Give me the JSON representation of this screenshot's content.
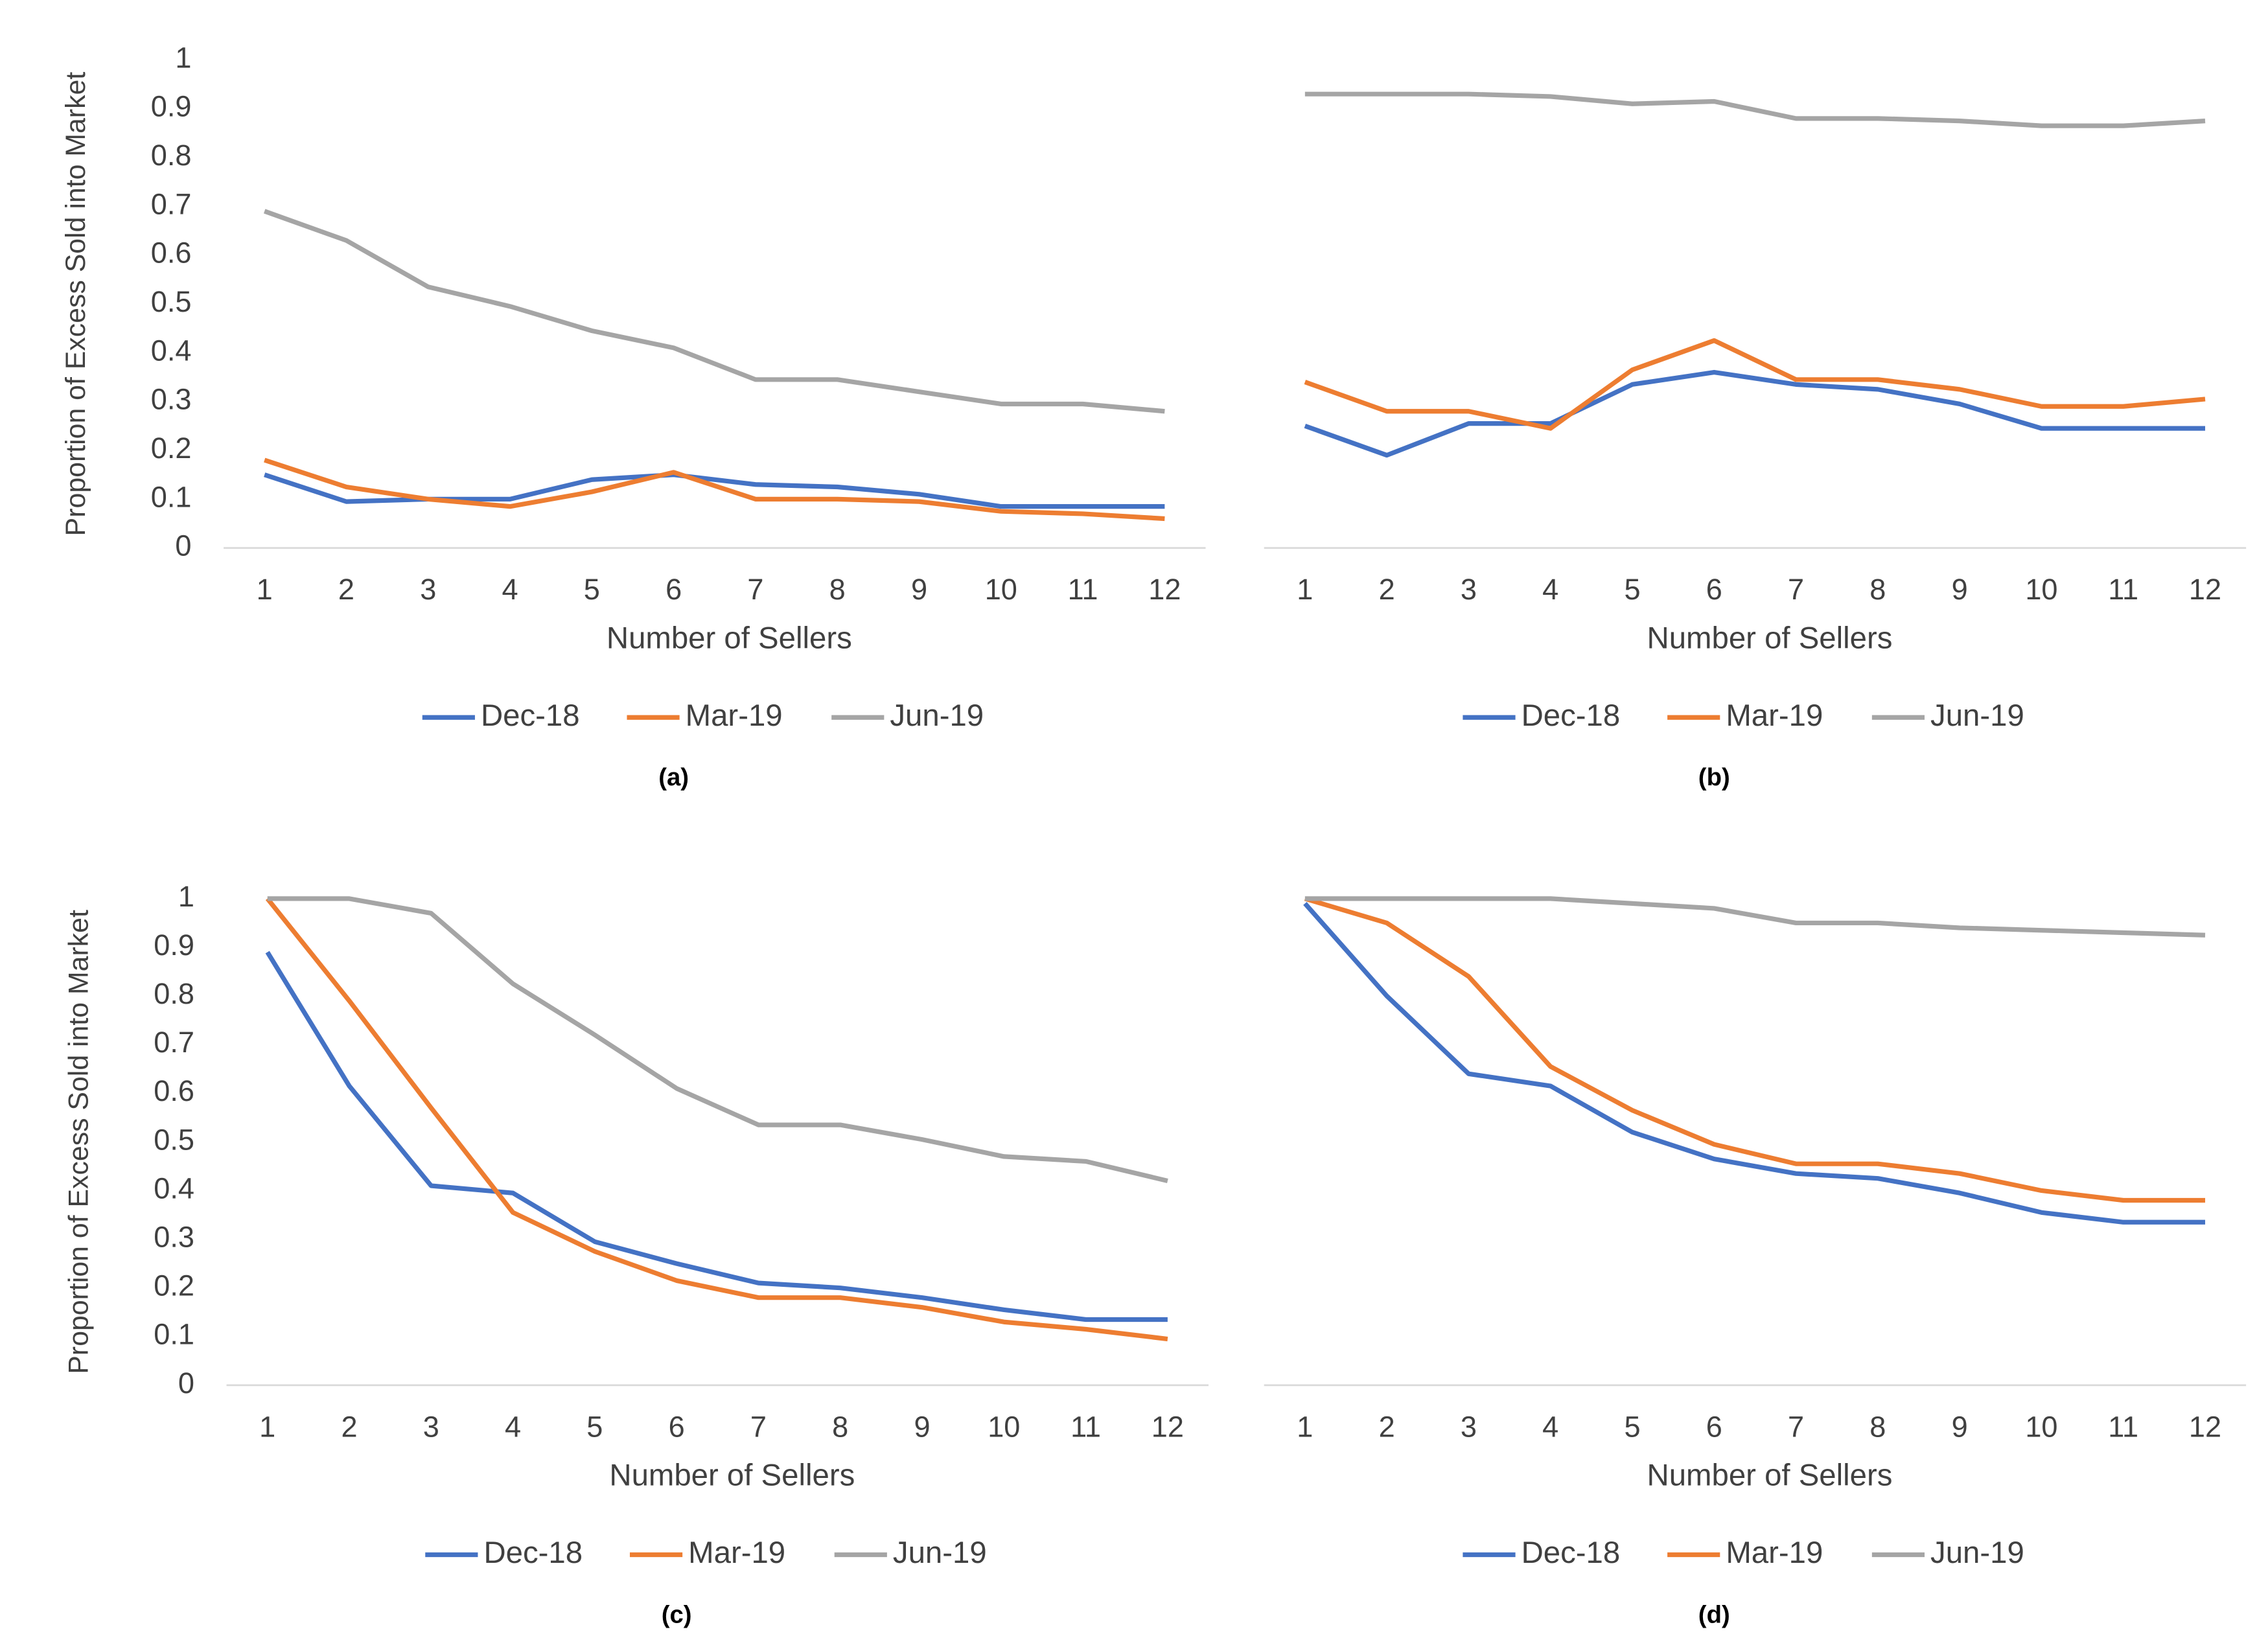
{
  "chart_data": [
    {
      "type": "line",
      "caption": "(a)",
      "x_label": "Number of Sellers",
      "y_label": "Proportion of Excess Sold into Market",
      "categories": [
        "1",
        "2",
        "3",
        "4",
        "5",
        "6",
        "7",
        "8",
        "9",
        "10",
        "11",
        "12"
      ],
      "ylim": [
        0,
        1
      ],
      "yticks": [
        0,
        0.1,
        0.2,
        0.3,
        0.4,
        0.5,
        0.6,
        0.7,
        0.8,
        0.9,
        1
      ],
      "grid": false,
      "legend": "bottom",
      "series": [
        {
          "name": "Dec-18",
          "color": "#4472c4",
          "values": [
            0.15,
            0.095,
            0.1,
            0.1,
            0.14,
            0.15,
            0.13,
            0.125,
            0.11,
            0.085,
            0.085,
            0.085
          ]
        },
        {
          "name": "Mar-19",
          "color": "#ed7d31",
          "values": [
            0.18,
            0.125,
            0.1,
            0.085,
            0.115,
            0.155,
            0.1,
            0.1,
            0.095,
            0.075,
            0.07,
            0.06
          ]
        },
        {
          "name": "Jun-19",
          "color": "#a5a5a5",
          "values": [
            0.69,
            0.63,
            0.535,
            0.495,
            0.445,
            0.41,
            0.345,
            0.345,
            0.32,
            0.295,
            0.295,
            0.28
          ]
        }
      ]
    },
    {
      "type": "line",
      "caption": "(b)",
      "x_label": "Number of Sellers",
      "categories": [
        "1",
        "2",
        "3",
        "4",
        "5",
        "6",
        "7",
        "8",
        "9",
        "10",
        "11",
        "12"
      ],
      "ylim": [
        0,
        1
      ],
      "grid": false,
      "legend": "bottom",
      "series": [
        {
          "name": "Dec-18",
          "color": "#4472c4",
          "values": [
            0.25,
            0.19,
            0.255,
            0.255,
            0.335,
            0.36,
            0.335,
            0.325,
            0.295,
            0.245,
            0.245,
            0.245
          ]
        },
        {
          "name": "Mar-19",
          "color": "#ed7d31",
          "values": [
            0.34,
            0.28,
            0.28,
            0.245,
            0.365,
            0.425,
            0.345,
            0.345,
            0.325,
            0.29,
            0.29,
            0.305
          ]
        },
        {
          "name": "Jun-19",
          "color": "#a5a5a5",
          "values": [
            0.93,
            0.93,
            0.93,
            0.925,
            0.91,
            0.915,
            0.88,
            0.88,
            0.875,
            0.865,
            0.865,
            0.875
          ]
        }
      ]
    },
    {
      "type": "line",
      "caption": "(c)",
      "x_label": "Number of Sellers",
      "y_label": "Proportion of Excess Sold into Market",
      "categories": [
        "1",
        "2",
        "3",
        "4",
        "5",
        "6",
        "7",
        "8",
        "9",
        "10",
        "11",
        "12"
      ],
      "ylim": [
        0,
        1
      ],
      "yticks": [
        0,
        0.1,
        0.2,
        0.3,
        0.4,
        0.5,
        0.6,
        0.7,
        0.8,
        0.9,
        1
      ],
      "grid": false,
      "legend": "bottom",
      "series": [
        {
          "name": "Dec-18",
          "color": "#4472c4",
          "values": [
            0.89,
            0.615,
            0.41,
            0.395,
            0.295,
            0.25,
            0.21,
            0.2,
            0.18,
            0.155,
            0.135,
            0.135
          ]
        },
        {
          "name": "Mar-19",
          "color": "#ed7d31",
          "values": [
            1.0,
            0.79,
            0.57,
            0.355,
            0.275,
            0.215,
            0.18,
            0.18,
            0.16,
            0.13,
            0.115,
            0.095
          ]
        },
        {
          "name": "Jun-19",
          "color": "#a5a5a5",
          "values": [
            1.0,
            1.0,
            0.97,
            0.825,
            0.72,
            0.61,
            0.535,
            0.535,
            0.505,
            0.47,
            0.46,
            0.42
          ]
        }
      ]
    },
    {
      "type": "line",
      "caption": "(d)",
      "x_label": "Number of Sellers",
      "categories": [
        "1",
        "2",
        "3",
        "4",
        "5",
        "6",
        "7",
        "8",
        "9",
        "10",
        "11",
        "12"
      ],
      "ylim": [
        0,
        1
      ],
      "grid": false,
      "legend": "bottom",
      "series": [
        {
          "name": "Dec-18",
          "color": "#4472c4",
          "values": [
            0.99,
            0.8,
            0.64,
            0.615,
            0.52,
            0.465,
            0.435,
            0.425,
            0.395,
            0.355,
            0.335,
            0.335
          ]
        },
        {
          "name": "Mar-19",
          "color": "#ed7d31",
          "values": [
            1.0,
            0.95,
            0.84,
            0.655,
            0.565,
            0.495,
            0.455,
            0.455,
            0.435,
            0.4,
            0.38,
            0.38
          ]
        },
        {
          "name": "Jun-19",
          "color": "#a5a5a5",
          "values": [
            1.0,
            1.0,
            1.0,
            1.0,
            0.99,
            0.98,
            0.95,
            0.95,
            0.94,
            0.935,
            0.93,
            0.925
          ]
        }
      ]
    }
  ]
}
